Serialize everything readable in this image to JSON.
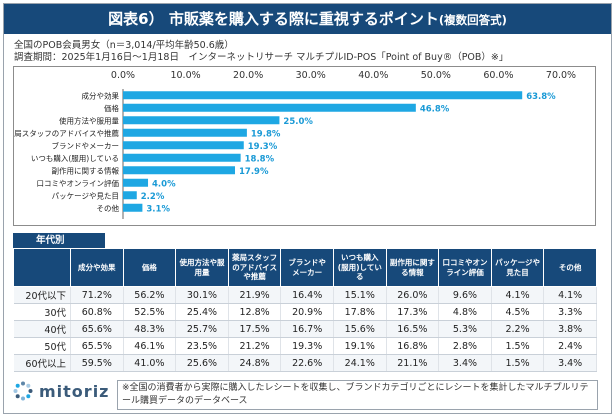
{
  "title": {
    "main": "図表6） 市販薬を購入する際に重視するポイント",
    "sub": "(複数回答式)"
  },
  "meta": {
    "line1": "全国のPOB会員男女（n＝3,014/平均年齢50.6歳）",
    "line2": "調査期間：2025年1月16日～1月18日　インターネットリサーチ マルチプルID-POS「Point of Buy®（POB）※」"
  },
  "colors": {
    "brand": "#17497a",
    "bar": "#1ea7e3",
    "label": "#1a9ad6"
  },
  "chart_data": {
    "type": "bar",
    "orientation": "horizontal",
    "categories": [
      "成分や効果",
      "価格",
      "使用方法や服用量",
      "薬局スタッフのアドバイスや推薦",
      "ブランドやメーカー",
      "いつも購入(服用)している",
      "副作用に関する情報",
      "口コミやオンライン評価",
      "パッケージや見た目",
      "その他"
    ],
    "values": [
      63.8,
      46.8,
      25.0,
      19.8,
      19.3,
      18.8,
      17.9,
      4.0,
      2.2,
      3.1
    ],
    "value_labels": [
      "63.8%",
      "46.8%",
      "25.0%",
      "19.8%",
      "19.3%",
      "18.8%",
      "17.9%",
      "4.0%",
      "2.2%",
      "3.1%"
    ],
    "xlim": [
      0,
      70
    ],
    "ticks": [
      0,
      10,
      20,
      30,
      40,
      50,
      60,
      70
    ],
    "tick_labels": [
      "0.0%",
      "10.0%",
      "20.0%",
      "30.0%",
      "40.0%",
      "50.0%",
      "60.0%",
      "70.0%"
    ],
    "grid": false
  },
  "age_table": {
    "tab_label": "年代別",
    "headers": [
      "成分や効果",
      "価格",
      "使用方法や服|用量",
      "薬局スタッフ|のアドバイス|や推薦",
      "ブランドや|メーカー",
      "いつも購入|(服用)している",
      "副作用に関す|る情報",
      "口コミやオン|ライン評価",
      "パッケージや|見た目",
      "その他"
    ],
    "rows": [
      {
        "label": "20代以下",
        "cells": [
          "71.2%",
          "56.2%",
          "30.1%",
          "21.9%",
          "16.4%",
          "15.1%",
          "26.0%",
          "9.6%",
          "4.1%",
          "4.1%"
        ]
      },
      {
        "label": "30代",
        "cells": [
          "60.8%",
          "52.5%",
          "25.4%",
          "12.8%",
          "20.9%",
          "17.8%",
          "17.3%",
          "4.8%",
          "4.5%",
          "3.3%"
        ]
      },
      {
        "label": "40代",
        "cells": [
          "65.6%",
          "48.3%",
          "25.7%",
          "17.5%",
          "16.7%",
          "15.6%",
          "16.5%",
          "5.3%",
          "2.2%",
          "3.8%"
        ]
      },
      {
        "label": "50代",
        "cells": [
          "65.5%",
          "46.1%",
          "23.5%",
          "21.2%",
          "19.3%",
          "19.1%",
          "16.8%",
          "2.8%",
          "1.5%",
          "2.4%"
        ]
      },
      {
        "label": "60代以上",
        "cells": [
          "59.5%",
          "41.0%",
          "25.6%",
          "24.8%",
          "22.6%",
          "24.1%",
          "21.1%",
          "3.4%",
          "1.5%",
          "3.4%"
        ]
      }
    ]
  },
  "footer": {
    "logo_text": "mitoriz",
    "logo_icon": "dot-ring-icon",
    "note": "※全国の消費者から実際に購入したレシートを収集し、ブランドカテゴリごとにレシートを集計したマルチプルリテール購買データのデータベース"
  }
}
